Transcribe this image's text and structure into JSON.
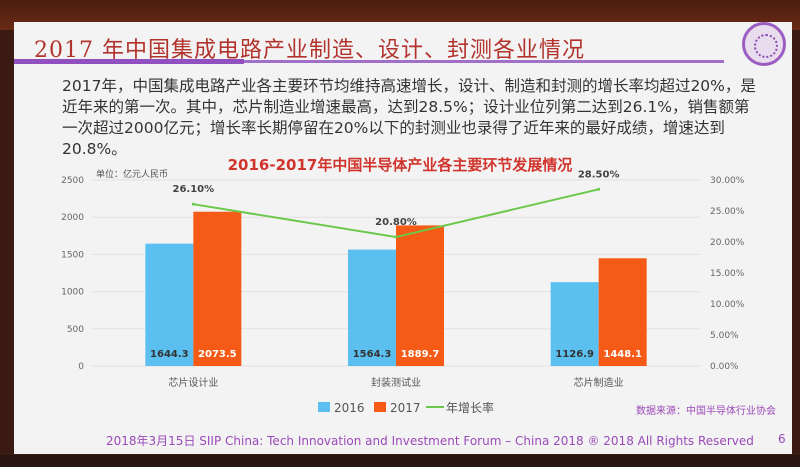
{
  "slide": {
    "title": "2017 年中国集成电路产业制造、设计、封测各业情况",
    "body": "2017年，中国集成电路产业各主要环节均维持高速增长，设计、制造和封测的增长率均超过20%，是近年来的第一次。其中，芯片制造业增速最高，达到28.5%；设计业位列第二达到26.1%，销售额第一次超过2000亿元；增长率长期停留在20%以下的封测业也录得了近年来的最好成绩，增速达到20.8%。",
    "footer": "2018年3月15日 SIIP China: Tech Innovation and Investment Forum – China 2018 ® 2018 All Rights Reserved",
    "page_number": "6",
    "logo_icon": "university-seal"
  },
  "chart_data": {
    "type": "bar",
    "title": "2016-2017年中国半导体产业各主要环节发展情况",
    "unit_label": "单位：亿元人民币",
    "categories": [
      "芯片设计业",
      "封装测试业",
      "芯片制造业"
    ],
    "series": [
      {
        "name": "2016",
        "type": "bar",
        "axis": "left",
        "color": "#5bc0f0",
        "values": [
          1644.3,
          1564.3,
          1126.9
        ],
        "labels": [
          "1644.3",
          "1564.3",
          "1126.9"
        ]
      },
      {
        "name": "2017",
        "type": "bar",
        "axis": "left",
        "color": "#f55a16",
        "values": [
          2073.5,
          1889.7,
          1448.1
        ],
        "labels": [
          "2073.5",
          "1889.7",
          "1448.1"
        ]
      },
      {
        "name": "年增长率",
        "type": "line",
        "axis": "right",
        "color": "#6cc84a",
        "values": [
          26.1,
          20.8,
          28.5
        ],
        "labels": [
          "26.10%",
          "20.80%",
          "28.50%"
        ]
      }
    ],
    "ylim": [
      0,
      2500
    ],
    "yticks": [
      "0",
      "500",
      "1000",
      "1500",
      "2000",
      "2500"
    ],
    "y2lim": [
      0,
      30
    ],
    "y2ticks": [
      "0.00%",
      "5.00%",
      "10.00%",
      "15.00%",
      "20.00%",
      "25.00%",
      "30.00%"
    ],
    "grid": true,
    "legend_position": "bottom",
    "source": "数据来源：中国半导体行业协会"
  }
}
